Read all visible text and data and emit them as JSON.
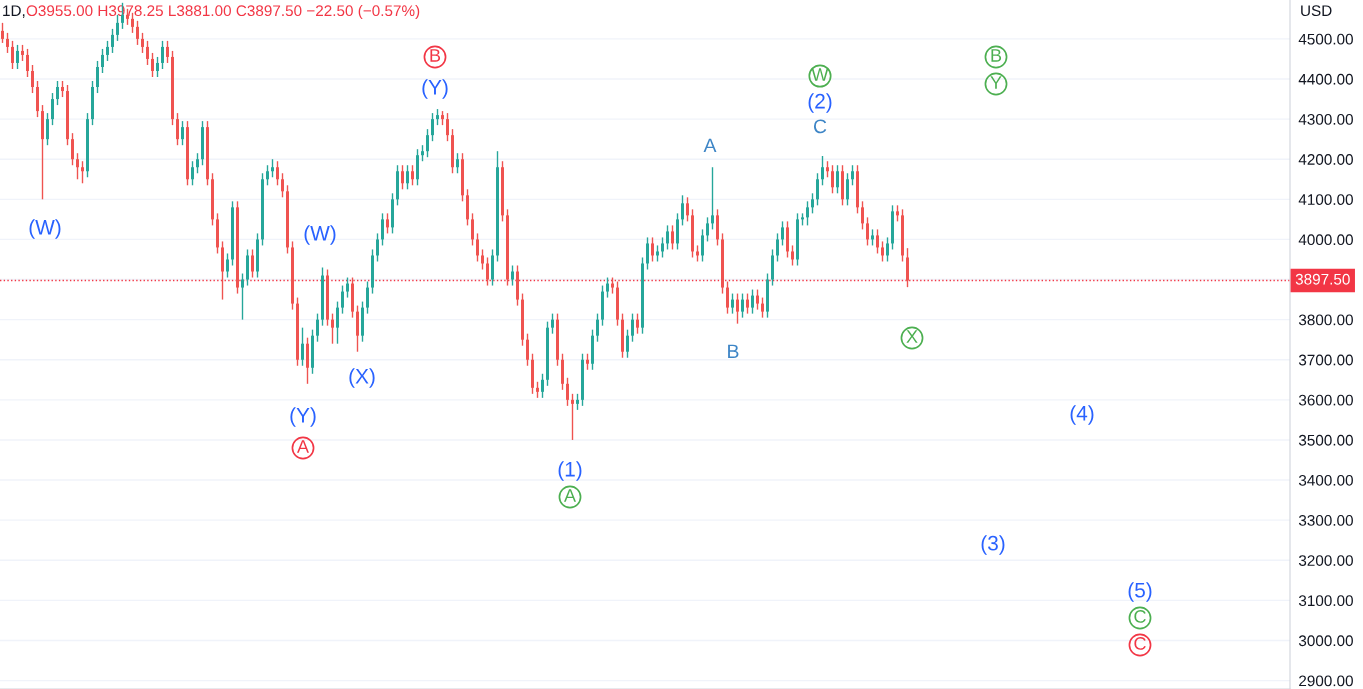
{
  "chart_data": {
    "type": "candlestick",
    "title": "1D,",
    "subtitle": "O3955.00 H3978.25 L3881.00 C3897.50 −22.50 (−0.57%)",
    "ylabel": "USD",
    "categories": [
      null,
      null,
      null,
      null,
      null,
      null,
      null,
      null,
      null,
      null,
      null,
      null,
      null,
      null,
      null,
      null,
      null,
      null,
      null,
      null,
      null,
      null,
      null,
      null,
      null,
      null,
      null,
      null,
      null,
      null,
      null,
      null,
      null,
      null,
      null,
      null,
      null,
      null,
      null,
      null,
      null,
      null,
      null,
      null,
      null,
      null,
      null,
      null,
      null,
      null,
      null,
      null,
      null,
      null,
      null,
      null,
      null,
      null,
      null,
      null,
      null,
      null,
      null,
      null,
      null,
      null,
      null,
      null,
      null,
      null,
      null,
      null,
      null,
      null,
      null,
      null,
      null,
      null,
      null,
      null,
      null,
      null,
      null,
      null,
      null,
      null,
      null,
      null,
      null,
      null,
      null,
      null,
      null,
      null,
      null,
      null,
      null,
      null,
      null,
      null,
      null,
      null,
      null,
      null,
      null,
      null,
      null,
      null,
      null,
      null,
      null,
      null,
      null,
      null,
      null,
      null,
      null,
      null,
      null,
      null,
      null,
      null,
      null,
      null,
      null,
      null,
      null,
      null,
      null,
      null,
      null,
      null,
      null,
      null,
      null,
      null,
      null,
      null,
      null,
      null,
      null,
      null,
      null,
      null,
      null,
      null,
      null,
      null,
      null,
      null,
      null,
      null,
      null,
      null,
      null,
      null,
      null,
      null,
      null,
      null,
      null,
      null,
      null,
      null,
      null,
      null,
      null,
      null,
      null,
      null,
      null,
      null,
      null,
      null,
      null,
      null,
      null,
      null,
      null,
      null,
      null,
      null,
      null,
      null,
      null,
      null,
      null,
      null,
      null,
      null,
      null,
      null,
      null,
      null,
      null,
      null,
      null,
      null,
      null,
      null,
      null,
      null,
      null,
      null,
      null,
      null,
      null,
      null,
      null,
      null,
      null,
      null,
      null,
      null,
      null,
      null,
      null,
      null,
      null,
      null,
      null,
      null,
      null,
      null,
      null,
      null,
      null,
      null,
      null,
      null,
      null,
      null,
      null,
      null,
      null,
      null,
      null,
      null,
      null,
      null,
      null,
      null,
      null,
      null,
      null,
      null,
      null,
      null,
      null,
      null,
      null,
      null,
      null,
      null,
      null,
      null,
      null,
      null
    ],
    "ohlc": [
      [
        4520,
        4540,
        4490,
        4500
      ],
      [
        4500,
        4515,
        4465,
        4480
      ],
      [
        4480,
        4495,
        4425,
        4440
      ],
      [
        4440,
        4485,
        4425,
        4470
      ],
      [
        4470,
        4485,
        4445,
        4460
      ],
      [
        4460,
        4475,
        4405,
        4420
      ],
      [
        4420,
        4435,
        4365,
        4380
      ],
      [
        4380,
        4395,
        4305,
        4320
      ],
      [
        4320,
        4335,
        4100,
        4250
      ],
      [
        4250,
        4315,
        4235,
        4300
      ],
      [
        4300,
        4365,
        4285,
        4350
      ],
      [
        4350,
        4395,
        4335,
        4380
      ],
      [
        4380,
        4395,
        4355,
        4370
      ],
      [
        4370,
        4385,
        4235,
        4250
      ],
      [
        4250,
        4265,
        4185,
        4200
      ],
      [
        4200,
        4215,
        4150,
        4180
      ],
      [
        4180,
        4195,
        4140,
        4170
      ],
      [
        4170,
        4315,
        4155,
        4300
      ],
      [
        4300,
        4395,
        4285,
        4380
      ],
      [
        4380,
        4445,
        4365,
        4430
      ],
      [
        4430,
        4475,
        4415,
        4460
      ],
      [
        4460,
        4495,
        4445,
        4480
      ],
      [
        4480,
        4525,
        4465,
        4510
      ],
      [
        4510,
        4560,
        4495,
        4540
      ],
      [
        4540,
        4590,
        4525,
        4560
      ],
      [
        4560,
        4575,
        4535,
        4550
      ],
      [
        4550,
        4565,
        4515,
        4530
      ],
      [
        4530,
        4545,
        4485,
        4500
      ],
      [
        4500,
        4515,
        4465,
        4480
      ],
      [
        4480,
        4495,
        4435,
        4450
      ],
      [
        4450,
        4465,
        4405,
        4420
      ],
      [
        4420,
        4455,
        4405,
        4440
      ],
      [
        4440,
        4495,
        4425,
        4480
      ],
      [
        4480,
        4495,
        4440,
        4455
      ],
      [
        4455,
        4470,
        4285,
        4300
      ],
      [
        4300,
        4315,
        4235,
        4250
      ],
      [
        4250,
        4295,
        4235,
        4280
      ],
      [
        4280,
        4295,
        4135,
        4150
      ],
      [
        4150,
        4195,
        4135,
        4180
      ],
      [
        4180,
        4215,
        4165,
        4200
      ],
      [
        4200,
        4295,
        4185,
        4280
      ],
      [
        4280,
        4295,
        4135,
        4150
      ],
      [
        4150,
        4165,
        4035,
        4050
      ],
      [
        4050,
        4065,
        3965,
        3980
      ],
      [
        3980,
        3995,
        3850,
        3920
      ],
      [
        3920,
        3965,
        3905,
        3950
      ],
      [
        3950,
        4095,
        3935,
        4080
      ],
      [
        4080,
        4095,
        3865,
        3880
      ],
      [
        3880,
        3915,
        3800,
        3900
      ],
      [
        3900,
        3975,
        3885,
        3960
      ],
      [
        3960,
        3975,
        3905,
        3920
      ],
      [
        3920,
        4015,
        3905,
        4000
      ],
      [
        4000,
        4165,
        3985,
        4150
      ],
      [
        4150,
        4185,
        4135,
        4170
      ],
      [
        4170,
        4200,
        4155,
        4180
      ],
      [
        4180,
        4195,
        4135,
        4150
      ],
      [
        4150,
        4165,
        4105,
        4120
      ],
      [
        4120,
        4135,
        3965,
        3980
      ],
      [
        3980,
        3995,
        3825,
        3840
      ],
      [
        3840,
        3855,
        3685,
        3700
      ],
      [
        3700,
        3780,
        3685,
        3740
      ],
      [
        3740,
        3755,
        3640,
        3680
      ],
      [
        3680,
        3775,
        3665,
        3760
      ],
      [
        3760,
        3815,
        3745,
        3800
      ],
      [
        3800,
        3930,
        3785,
        3910
      ],
      [
        3910,
        3925,
        3785,
        3800
      ],
      [
        3800,
        3815,
        3740,
        3780
      ],
      [
        3780,
        3845,
        3740,
        3830
      ],
      [
        3830,
        3885,
        3815,
        3870
      ],
      [
        3870,
        3905,
        3855,
        3890
      ],
      [
        3890,
        3905,
        3805,
        3820
      ],
      [
        3820,
        3835,
        3720,
        3760
      ],
      [
        3760,
        3845,
        3745,
        3830
      ],
      [
        3830,
        3895,
        3815,
        3880
      ],
      [
        3880,
        3975,
        3865,
        3960
      ],
      [
        3960,
        4015,
        3945,
        4000
      ],
      [
        4000,
        4065,
        3985,
        4050
      ],
      [
        4050,
        4065,
        4015,
        4030
      ],
      [
        4030,
        4115,
        4015,
        4100
      ],
      [
        4100,
        4185,
        4085,
        4170
      ],
      [
        4170,
        4185,
        4125,
        4140
      ],
      [
        4140,
        4185,
        4125,
        4170
      ],
      [
        4170,
        4185,
        4135,
        4150
      ],
      [
        4150,
        4225,
        4135,
        4210
      ],
      [
        4210,
        4235,
        4195,
        4220
      ],
      [
        4220,
        4275,
        4205,
        4260
      ],
      [
        4260,
        4315,
        4245,
        4300
      ],
      [
        4300,
        4325,
        4285,
        4310
      ],
      [
        4310,
        4320,
        4285,
        4300
      ],
      [
        4300,
        4315,
        4245,
        4260
      ],
      [
        4260,
        4275,
        4165,
        4180
      ],
      [
        4180,
        4215,
        4165,
        4200
      ],
      [
        4200,
        4215,
        4095,
        4110
      ],
      [
        4110,
        4125,
        4035,
        4050
      ],
      [
        4050,
        4065,
        3985,
        4000
      ],
      [
        4000,
        4015,
        3945,
        3960
      ],
      [
        3960,
        3975,
        3925,
        3940
      ],
      [
        3940,
        3955,
        3885,
        3900
      ],
      [
        3900,
        3975,
        3885,
        3960
      ],
      [
        3960,
        4220,
        3945,
        4180
      ],
      [
        4180,
        4195,
        4045,
        4060
      ],
      [
        4060,
        4075,
        3885,
        3900
      ],
      [
        3900,
        3935,
        3885,
        3920
      ],
      [
        3920,
        3935,
        3835,
        3850
      ],
      [
        3850,
        3865,
        3735,
        3750
      ],
      [
        3750,
        3765,
        3685,
        3700
      ],
      [
        3700,
        3715,
        3615,
        3630
      ],
      [
        3630,
        3645,
        3605,
        3620
      ],
      [
        3620,
        3665,
        3605,
        3650
      ],
      [
        3650,
        3795,
        3635,
        3780
      ],
      [
        3780,
        3815,
        3765,
        3800
      ],
      [
        3800,
        3815,
        3685,
        3700
      ],
      [
        3700,
        3715,
        3625,
        3640
      ],
      [
        3640,
        3655,
        3585,
        3600
      ],
      [
        3600,
        3615,
        3500,
        3590
      ],
      [
        3590,
        3615,
        3575,
        3600
      ],
      [
        3600,
        3715,
        3585,
        3700
      ],
      [
        3700,
        3715,
        3675,
        3690
      ],
      [
        3690,
        3775,
        3675,
        3760
      ],
      [
        3760,
        3815,
        3745,
        3800
      ],
      [
        3800,
        3885,
        3785,
        3870
      ],
      [
        3870,
        3905,
        3855,
        3890
      ],
      [
        3890,
        3905,
        3865,
        3880
      ],
      [
        3880,
        3895,
        3785,
        3800
      ],
      [
        3800,
        3815,
        3705,
        3720
      ],
      [
        3720,
        3775,
        3705,
        3760
      ],
      [
        3760,
        3815,
        3745,
        3800
      ],
      [
        3800,
        3815,
        3765,
        3780
      ],
      [
        3780,
        3955,
        3765,
        3940
      ],
      [
        3940,
        4005,
        3925,
        3990
      ],
      [
        3990,
        4005,
        3945,
        3960
      ],
      [
        3960,
        3985,
        3945,
        3970
      ],
      [
        3970,
        4005,
        3955,
        3990
      ],
      [
        3990,
        4035,
        3975,
        4020
      ],
      [
        4020,
        4035,
        3975,
        3990
      ],
      [
        3990,
        4065,
        3975,
        4050
      ],
      [
        4050,
        4110,
        4035,
        4090
      ],
      [
        4090,
        4105,
        4045,
        4060
      ],
      [
        4060,
        4075,
        3955,
        3970
      ],
      [
        3970,
        3985,
        3945,
        3960
      ],
      [
        3960,
        4025,
        3945,
        4010
      ],
      [
        4010,
        4055,
        3995,
        4040
      ],
      [
        4040,
        4180,
        4025,
        4060
      ],
      [
        4060,
        4075,
        3985,
        4000
      ],
      [
        4000,
        4015,
        3865,
        3880
      ],
      [
        3880,
        3895,
        3815,
        3830
      ],
      [
        3830,
        3865,
        3815,
        3850
      ],
      [
        3850,
        3865,
        3790,
        3820
      ],
      [
        3820,
        3865,
        3805,
        3850
      ],
      [
        3850,
        3865,
        3815,
        3830
      ],
      [
        3830,
        3875,
        3815,
        3860
      ],
      [
        3860,
        3875,
        3825,
        3840
      ],
      [
        3840,
        3855,
        3805,
        3820
      ],
      [
        3820,
        3915,
        3805,
        3900
      ],
      [
        3900,
        3975,
        3885,
        3960
      ],
      [
        3960,
        4015,
        3945,
        4000
      ],
      [
        4000,
        4045,
        3985,
        4030
      ],
      [
        4030,
        4045,
        3955,
        3970
      ],
      [
        3970,
        3985,
        3935,
        3950
      ],
      [
        3950,
        4065,
        3935,
        4050
      ],
      [
        4050,
        4065,
        4035,
        4055
      ],
      [
        4055,
        4095,
        4035,
        4080
      ],
      [
        4080,
        4115,
        4065,
        4100
      ],
      [
        4100,
        4165,
        4085,
        4150
      ],
      [
        4150,
        4208,
        4135,
        4180
      ],
      [
        4180,
        4195,
        4155,
        4170
      ],
      [
        4170,
        4185,
        4115,
        4130
      ],
      [
        4130,
        4185,
        4115,
        4170
      ],
      [
        4170,
        4185,
        4085,
        4100
      ],
      [
        4100,
        4165,
        4085,
        4150
      ],
      [
        4150,
        4185,
        4135,
        4170
      ],
      [
        4170,
        4185,
        4065,
        4080
      ],
      [
        4080,
        4095,
        4025,
        4040
      ],
      [
        4040,
        4055,
        3985,
        4000
      ],
      [
        4000,
        4025,
        3985,
        4010
      ],
      [
        4010,
        4025,
        3965,
        3980
      ],
      [
        3980,
        3995,
        3945,
        3960
      ],
      [
        3960,
        4005,
        3945,
        3990
      ],
      [
        3990,
        4085,
        3975,
        4070
      ],
      [
        4070,
        4085,
        4045,
        4060
      ],
      [
        4060,
        4075,
        3945,
        3960
      ],
      [
        3955,
        3978.25,
        3881,
        3897.5
      ],
      null,
      null,
      null,
      null,
      null,
      null,
      null,
      null,
      null,
      null,
      null,
      null,
      null,
      null,
      null,
      null,
      null,
      null,
      null,
      null,
      null,
      null,
      null,
      null,
      null,
      null,
      null,
      null,
      null,
      null,
      null,
      null,
      null,
      null,
      null,
      null,
      null,
      null,
      null,
      null,
      null,
      null,
      null,
      null,
      null,
      null,
      null,
      null,
      null,
      null,
      null,
      null,
      null,
      null,
      null,
      null,
      null,
      null,
      null,
      null,
      null,
      null,
      null,
      null,
      null,
      null,
      null,
      null,
      null,
      null,
      null,
      null,
      null,
      null,
      null,
      null
    ],
    "ylim": [
      2879,
      4597
    ],
    "yticks": [
      {
        "value": 2900,
        "label": "2900.00"
      },
      {
        "value": 3000,
        "label": "3000.00"
      },
      {
        "value": 3100,
        "label": "3100.00"
      },
      {
        "value": 3200,
        "label": "3200.00"
      },
      {
        "value": 3300,
        "label": "3300.00"
      },
      {
        "value": 3400,
        "label": "3400.00"
      },
      {
        "value": 3500,
        "label": "3500.00"
      },
      {
        "value": 3600,
        "label": "3600.00"
      },
      {
        "value": 3700,
        "label": "3700.00"
      },
      {
        "value": 3800,
        "label": "3800.00"
      },
      {
        "value": 3900,
        "label": null
      },
      {
        "value": 4000,
        "label": "4000.00"
      },
      {
        "value": 4100,
        "label": "4100.00"
      },
      {
        "value": 4200,
        "label": "4200.00"
      },
      {
        "value": 4300,
        "label": "4300.00"
      },
      {
        "value": 4400,
        "label": "4400.00"
      },
      {
        "value": 4500,
        "label": "4500.00"
      }
    ],
    "tick_labels": "y",
    "grid": "y",
    "ref_lines": [
      {
        "axis": "y",
        "value": 3897.5,
        "label": "3897.50",
        "color": "#f23645",
        "line_style": "dotted"
      }
    ],
    "annotations": [
      "(W)",
      "(W)",
      "(X)",
      "(Y)",
      "A",
      "(Y)",
      "B",
      "(1)",
      "A",
      "A",
      "B",
      "C",
      "(2)",
      "W",
      "X",
      "B",
      "Y",
      "(3)",
      "(4)",
      "(5)",
      "C",
      "C"
    ]
  }
}
